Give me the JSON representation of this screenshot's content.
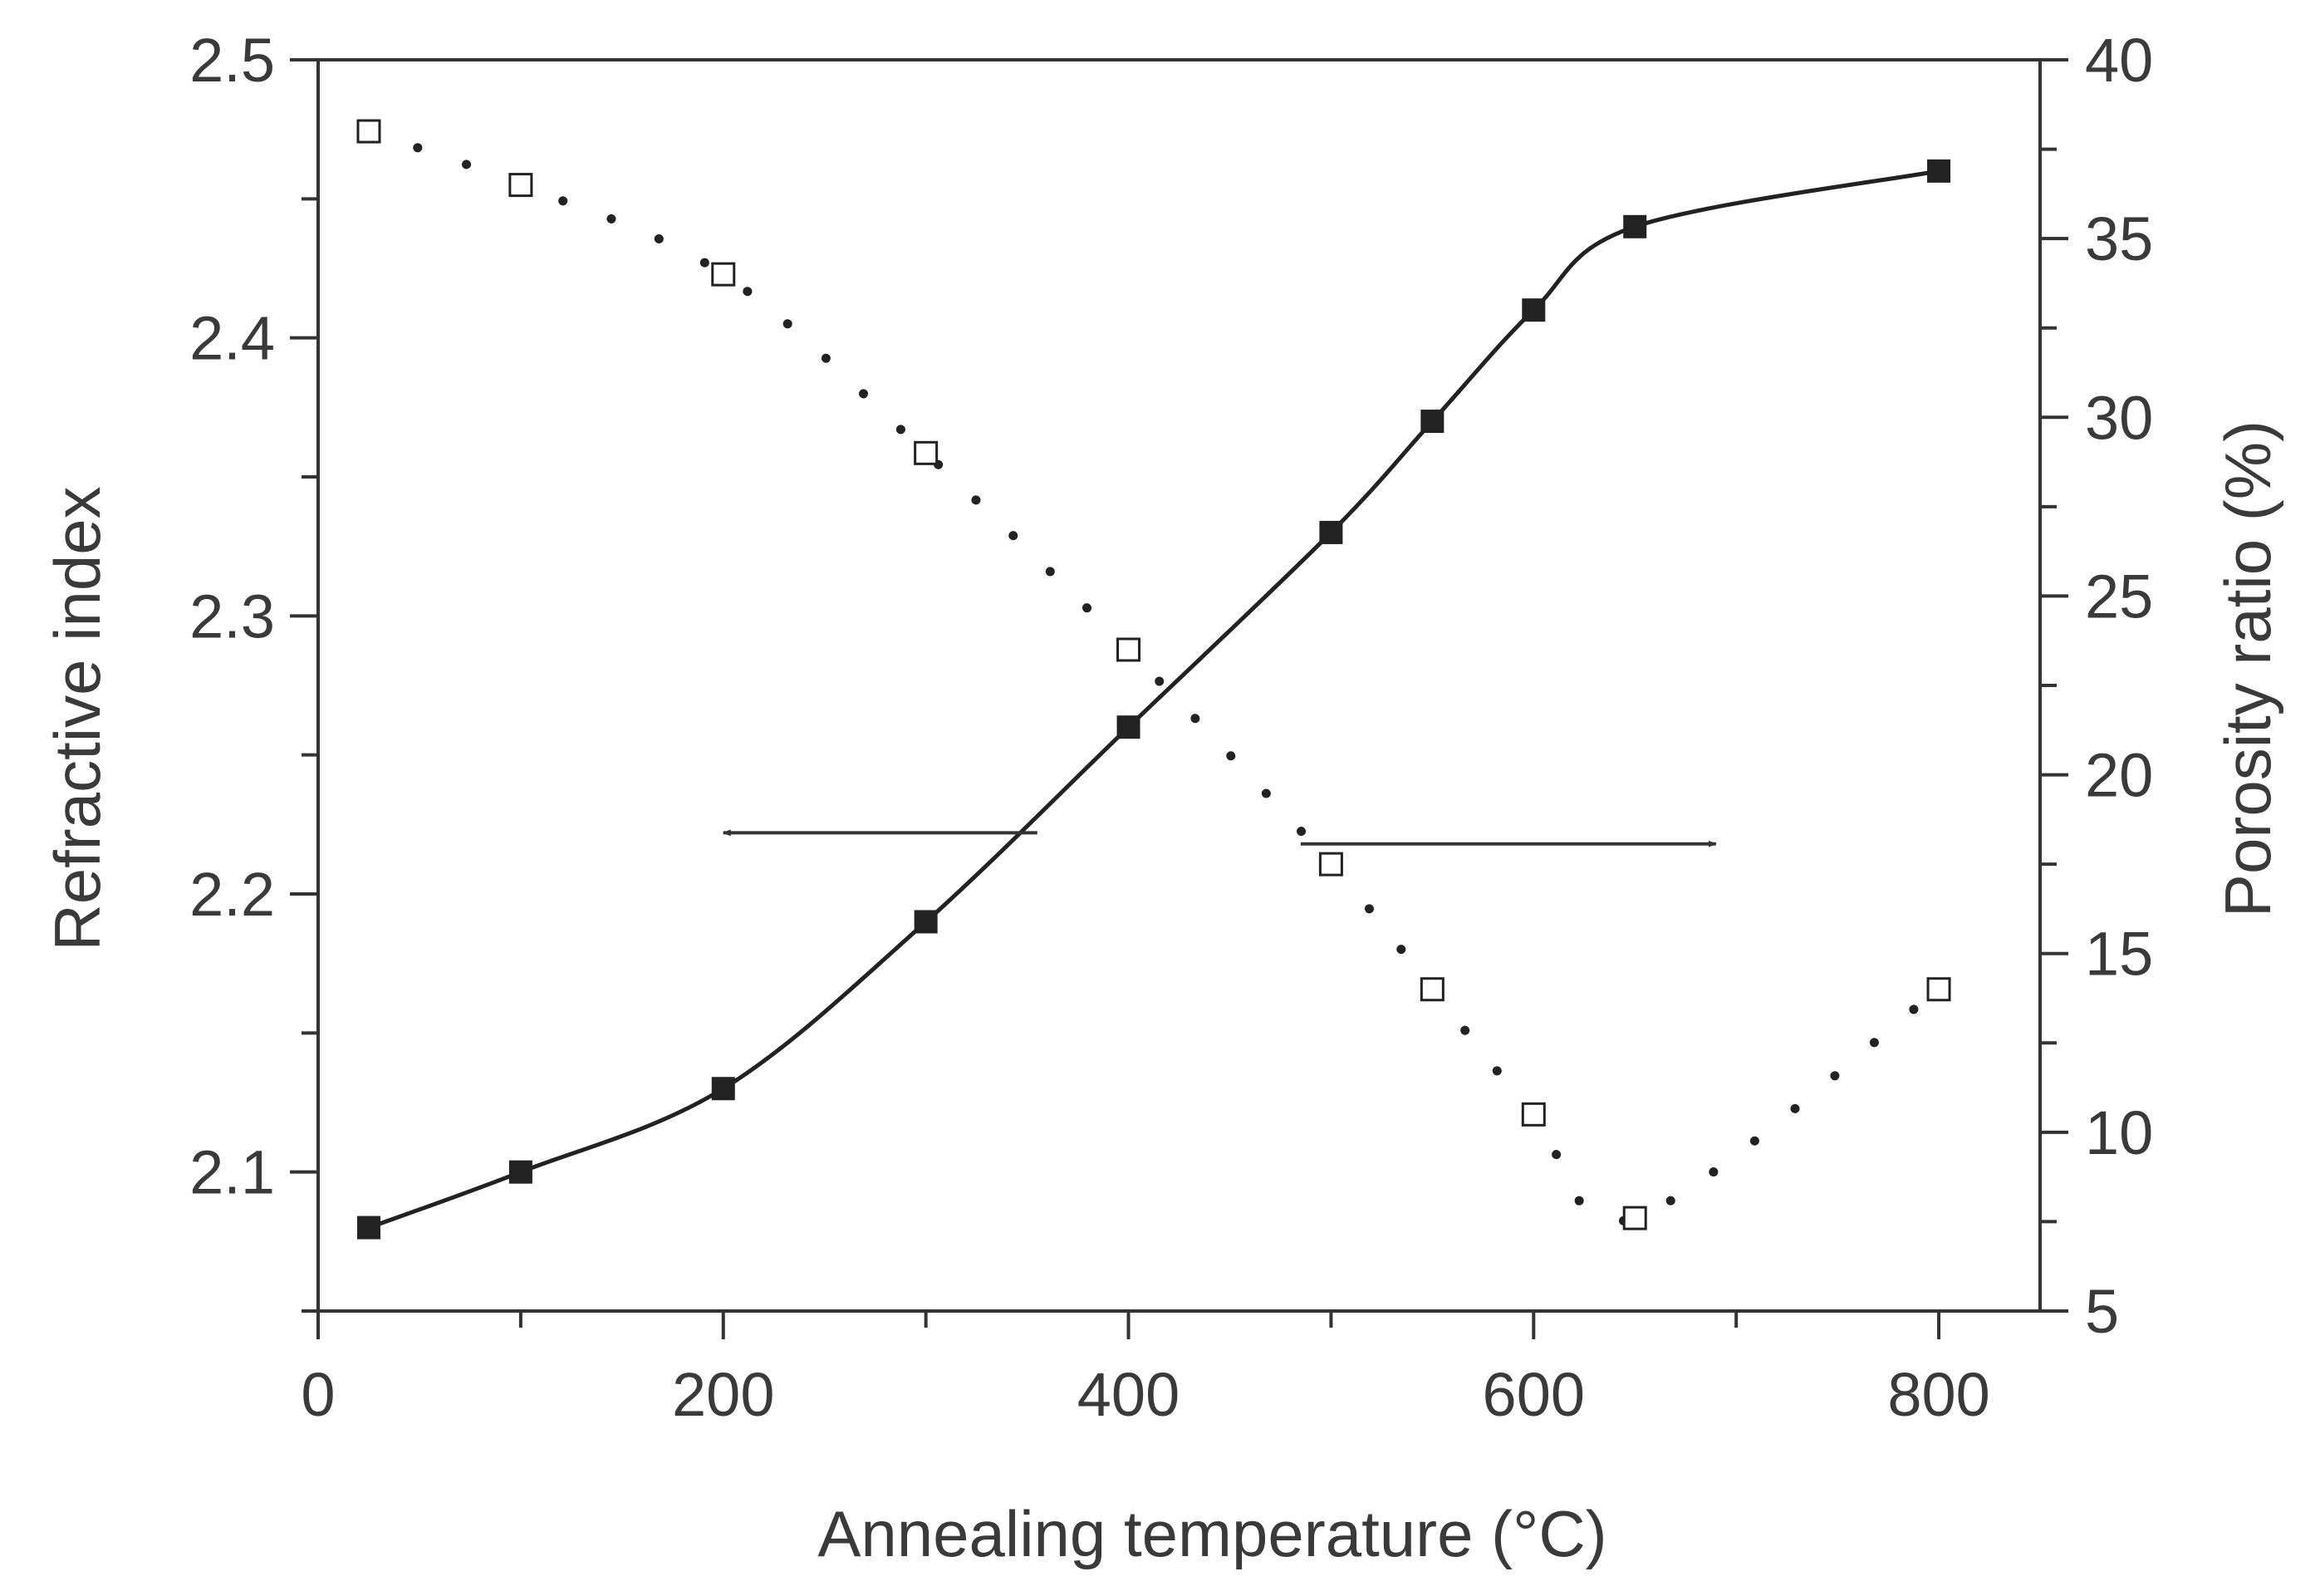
{
  "chart_data": {
    "type": "scatter",
    "title": "",
    "xlabel": "Annealing temperature (°C)",
    "ylabel": "Refractive index",
    "y2label": "Porosity ratio (%)",
    "xlim": [
      0,
      850
    ],
    "ylim": [
      2.05,
      2.5
    ],
    "y2lim": [
      5,
      40
    ],
    "xticks": [
      0,
      200,
      400,
      600,
      800
    ],
    "xtick_labels": [
      "0",
      "200",
      "400",
      "600",
      "800"
    ],
    "yticks": [
      2.1,
      2.2,
      2.3,
      2.4,
      2.5
    ],
    "ytick_labels": [
      "2.1",
      "2.2",
      "2.3",
      "2.4",
      "2.5"
    ],
    "y2ticks": [
      5,
      10,
      15,
      20,
      25,
      30,
      35,
      40
    ],
    "y2tick_labels": [
      "5",
      "10",
      "15",
      "20",
      "25",
      "30",
      "35",
      "40"
    ],
    "grid": false,
    "series": [
      {
        "name": "Refractive index",
        "axis": "left",
        "marker": "filled-square",
        "line": "solid",
        "color": "#222222",
        "x": [
          25,
          100,
          200,
          300,
          400,
          500,
          550,
          600,
          650,
          800
        ],
        "y": [
          2.08,
          2.1,
          2.13,
          2.19,
          2.26,
          2.33,
          2.37,
          2.41,
          2.44,
          2.46
        ]
      },
      {
        "name": "Porosity ratio",
        "axis": "right",
        "marker": "open-square",
        "line": "dotted",
        "color": "#222222",
        "x": [
          25,
          100,
          200,
          300,
          400,
          500,
          550,
          600,
          650,
          800
        ],
        "y": [
          38,
          36.5,
          34,
          29,
          23.5,
          17.5,
          14,
          10.5,
          7.6,
          14
        ]
      }
    ],
    "annotations": [
      {
        "type": "arrow",
        "direction": "left",
        "points_to_axis": "left",
        "at_x": [
          200,
          355
        ],
        "at_y": 2.222
      },
      {
        "type": "arrow",
        "direction": "right",
        "points_to_axis": "right",
        "at_x": [
          485,
          690
        ],
        "at_y": 2.218
      }
    ]
  }
}
